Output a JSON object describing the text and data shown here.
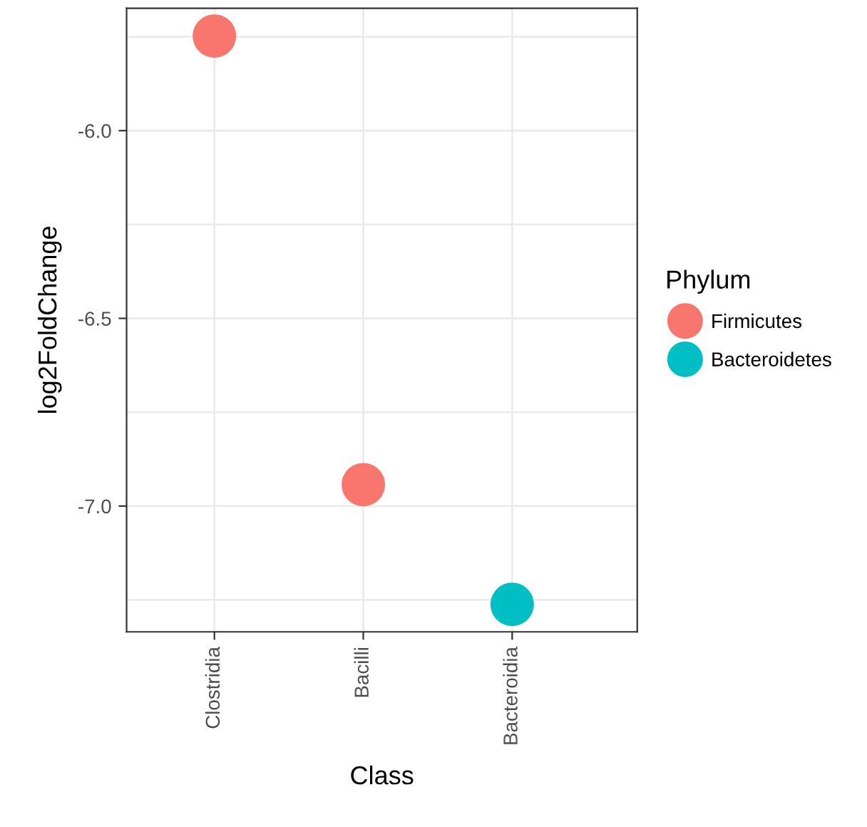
{
  "chart_data": {
    "type": "scatter",
    "xlabel": "Class",
    "ylabel": "log2FoldChange",
    "legend_title": "Phylum",
    "categories": [
      "Clostridia",
      "Bacilli",
      "Bacteroidia"
    ],
    "series": [
      {
        "name": "Firmicutes",
        "color": "#f8766d",
        "values": [
          -5.748,
          -6.943,
          null
        ]
      },
      {
        "name": "Bacteroidetes",
        "color": "#00bfc4",
        "values": [
          null,
          null,
          -7.262
        ]
      }
    ],
    "ylim": [
      -7.335,
      -5.674
    ],
    "yticks": [
      {
        "value": -5.75,
        "label": null
      },
      {
        "value": -6.0,
        "label": "-6.0"
      },
      {
        "value": -6.25,
        "label": null
      },
      -6.5,
      {
        "value": -6.75,
        "label": null
      },
      {
        "value": -7.0,
        "label": "-7.0"
      },
      {
        "value": -7.25,
        "label": null
      }
    ],
    "grid": true,
    "legend": "right",
    "marker": "circle"
  }
}
